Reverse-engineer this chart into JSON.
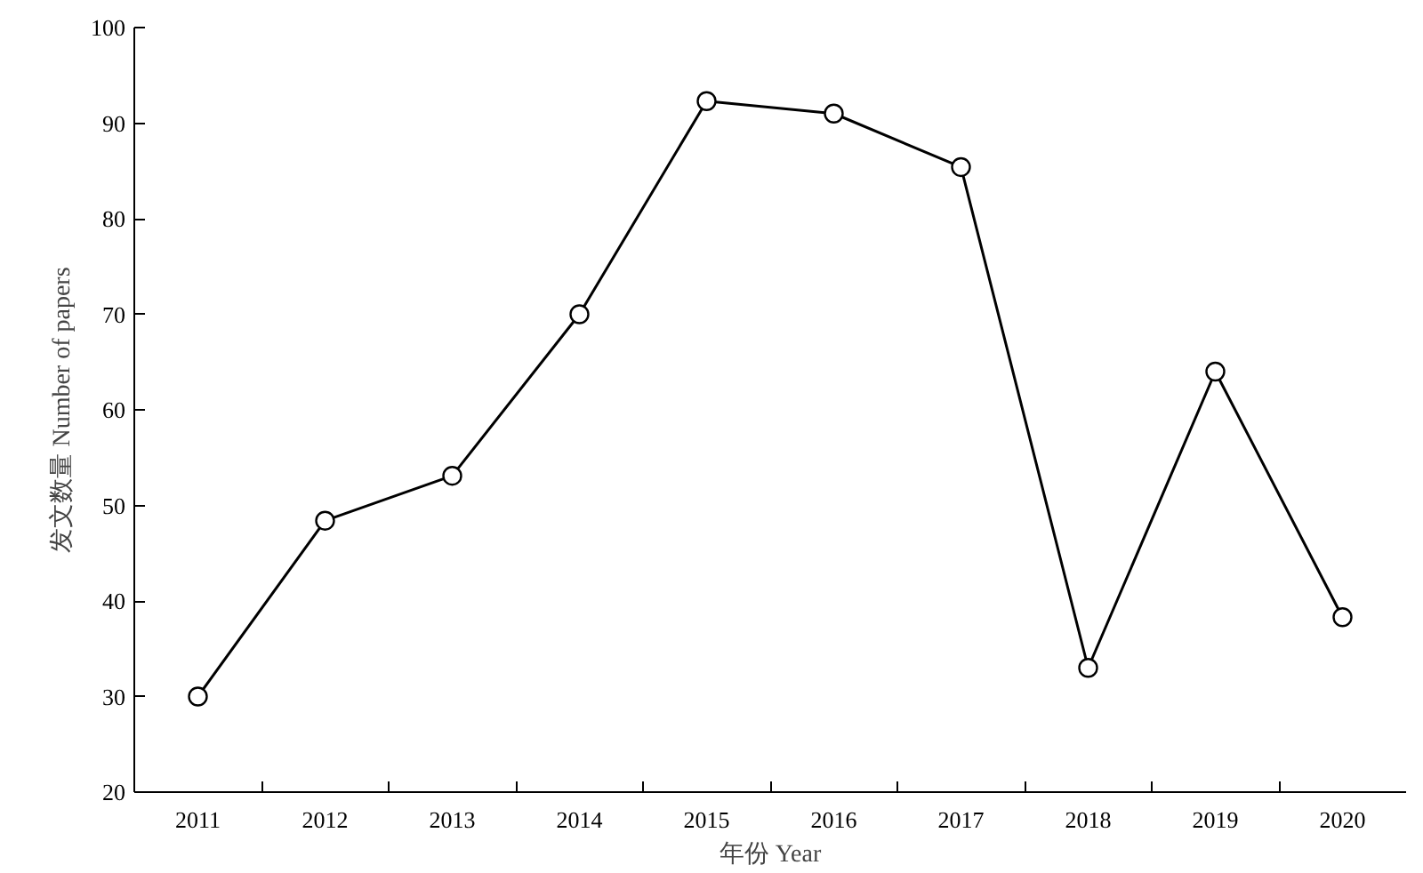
{
  "chart_data": {
    "type": "line",
    "xlabel": "年份 Year",
    "ylabel": "发文数量 Number of papers",
    "categories": [
      "2011",
      "2012",
      "2013",
      "2014",
      "2015",
      "2016",
      "2017",
      "2018",
      "2019",
      "2020"
    ],
    "values": [
      30,
      48.4,
      53.1,
      70,
      92.3,
      91,
      85.4,
      33,
      64,
      38.3
    ],
    "color": "#000000",
    "marker": "circle",
    "line_style": "solid",
    "ylim": [
      20,
      100
    ],
    "yticks": [
      20,
      30,
      40,
      50,
      60,
      70,
      80,
      90,
      100
    ]
  }
}
